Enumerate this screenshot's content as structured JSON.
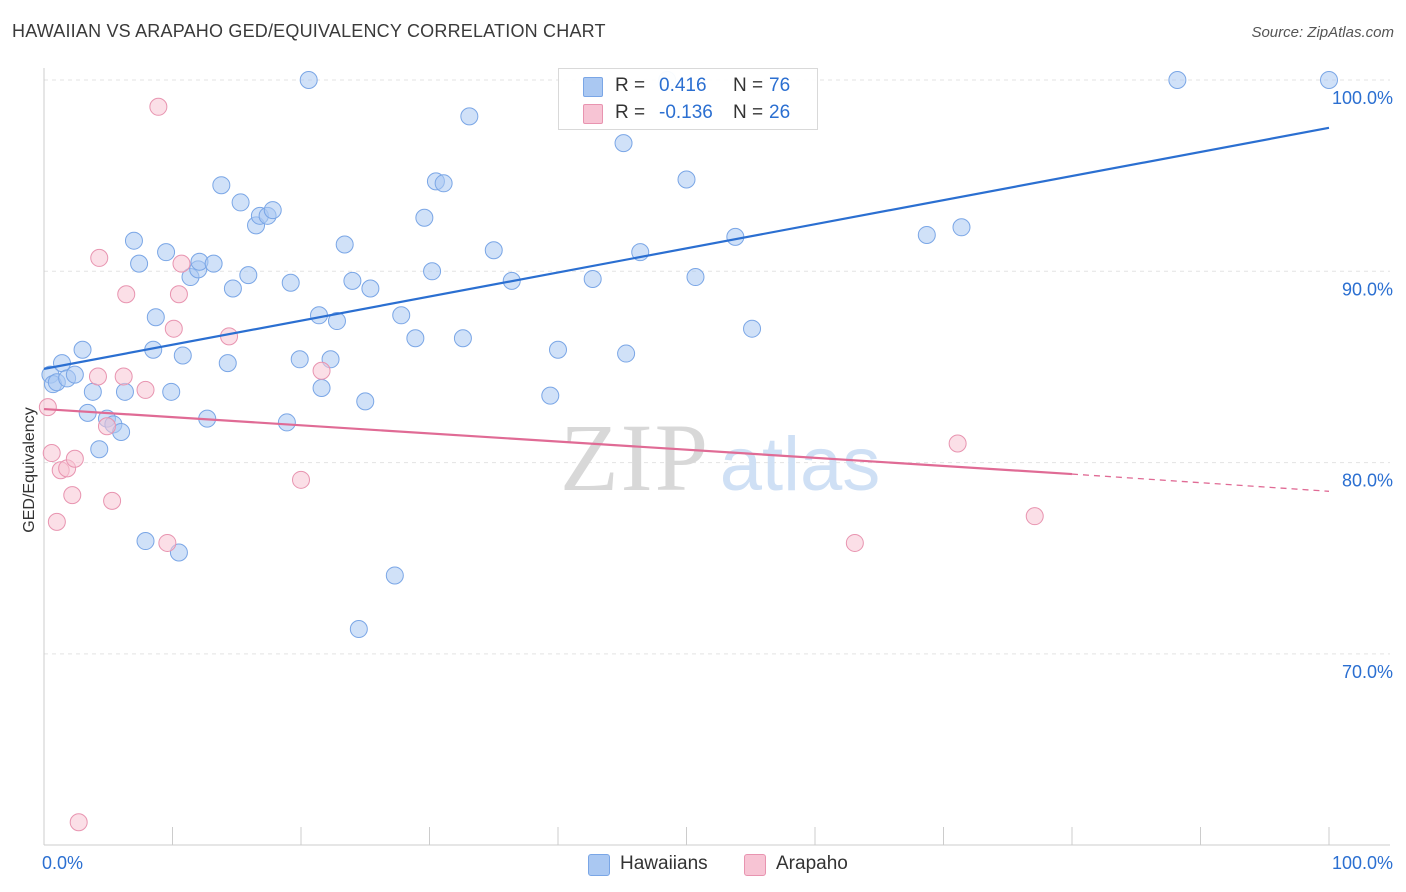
{
  "header": {
    "title": "HAWAIIAN VS ARAPAHO GED/EQUIVALENCY CORRELATION CHART",
    "source": "Source: ZipAtlas.com"
  },
  "watermark": {
    "zip": "ZIP",
    "atlas": "atlas"
  },
  "legend_box": {
    "rows": [
      {
        "r_label": "R =",
        "r_value": "0.416",
        "n_label": "N =",
        "n_value": "76",
        "color": "#aac8f2",
        "border": "#7aa6e6"
      },
      {
        "r_label": "R =",
        "r_value": "-0.136",
        "n_label": "N =",
        "n_value": "26",
        "color": "#f7c4d4",
        "border": "#e894b0"
      }
    ]
  },
  "bottom_legend": {
    "hawaiians": "Hawaiians",
    "arapaho": "Arapaho"
  },
  "chart_data": {
    "type": "scatter",
    "title": "HAWAIIAN VS ARAPAHO GED/EQUIVALENCY CORRELATION CHART",
    "xlabel": "",
    "ylabel": "GED/Equivalency",
    "xlim": [
      0,
      100
    ],
    "ylim": [
      60,
      101
    ],
    "x_tick_labels": [
      "0.0%",
      "100.0%"
    ],
    "y_ticks": [
      {
        "value": 70,
        "label": "70.0%"
      },
      {
        "value": 80,
        "label": "80.0%"
      },
      {
        "value": 90,
        "label": "90.0%"
      },
      {
        "value": 100,
        "label": "100.0%"
      }
    ],
    "grid": true,
    "legend": "bottom",
    "series": [
      {
        "name": "Hawaiians",
        "color": "#aac8f2",
        "stroke": "#7aa6e6",
        "trend": {
          "x0": 0,
          "y0": 84.9,
          "x1": 100,
          "y1": 97.5,
          "color": "#2b6fd1"
        },
        "points": [
          [
            0.5,
            84.6
          ],
          [
            0.7,
            84.1
          ],
          [
            1.0,
            84.2
          ],
          [
            1.4,
            85.2
          ],
          [
            1.8,
            84.4
          ],
          [
            2.4,
            84.6
          ],
          [
            3.0,
            85.9
          ],
          [
            3.4,
            82.6
          ],
          [
            3.8,
            83.7
          ],
          [
            4.3,
            80.7
          ],
          [
            4.9,
            82.3
          ],
          [
            5.4,
            82.0
          ],
          [
            6.0,
            81.6
          ],
          [
            6.3,
            83.7
          ],
          [
            7.0,
            91.6
          ],
          [
            7.4,
            90.4
          ],
          [
            7.9,
            75.9
          ],
          [
            8.5,
            85.9
          ],
          [
            8.7,
            87.6
          ],
          [
            9.5,
            91.0
          ],
          [
            9.9,
            83.7
          ],
          [
            10.5,
            75.3
          ],
          [
            10.8,
            85.6
          ],
          [
            11.4,
            89.7
          ],
          [
            12.0,
            90.1
          ],
          [
            12.1,
            90.5
          ],
          [
            12.7,
            82.3
          ],
          [
            13.2,
            90.4
          ],
          [
            13.8,
            94.5
          ],
          [
            14.3,
            85.2
          ],
          [
            14.7,
            89.1
          ],
          [
            15.3,
            93.6
          ],
          [
            15.9,
            89.8
          ],
          [
            16.5,
            92.4
          ],
          [
            16.8,
            92.9
          ],
          [
            17.4,
            92.9
          ],
          [
            17.8,
            93.2
          ],
          [
            18.9,
            82.1
          ],
          [
            19.2,
            89.4
          ],
          [
            19.9,
            85.4
          ],
          [
            20.6,
            100.0
          ],
          [
            21.4,
            87.7
          ],
          [
            21.6,
            83.9
          ],
          [
            22.3,
            85.4
          ],
          [
            22.8,
            87.4
          ],
          [
            23.4,
            91.4
          ],
          [
            24.0,
            89.5
          ],
          [
            24.5,
            71.3
          ],
          [
            25.0,
            83.2
          ],
          [
            25.4,
            89.1
          ],
          [
            27.3,
            74.1
          ],
          [
            27.8,
            87.7
          ],
          [
            28.9,
            86.5
          ],
          [
            29.6,
            92.8
          ],
          [
            30.2,
            90.0
          ],
          [
            30.5,
            94.7
          ],
          [
            31.1,
            94.6
          ],
          [
            32.6,
            86.5
          ],
          [
            33.1,
            98.1
          ],
          [
            35.0,
            91.1
          ],
          [
            36.4,
            89.5
          ],
          [
            39.4,
            83.5
          ],
          [
            40.0,
            85.9
          ],
          [
            42.7,
            89.6
          ],
          [
            45.1,
            96.7
          ],
          [
            45.3,
            85.7
          ],
          [
            46.4,
            91.0
          ],
          [
            48.5,
            100.0
          ],
          [
            50.0,
            94.8
          ],
          [
            50.7,
            89.7
          ],
          [
            53.8,
            91.8
          ],
          [
            55.1,
            87.0
          ],
          [
            68.7,
            91.9
          ],
          [
            71.4,
            92.3
          ],
          [
            88.2,
            100.0
          ],
          [
            100.0,
            100.0
          ]
        ]
      },
      {
        "name": "Arapaho",
        "color": "#f7c4d4",
        "stroke": "#e894b0",
        "trend": {
          "x0": 0,
          "y0": 82.8,
          "x1": 80,
          "y1": 79.4,
          "color": "#e06b95",
          "dash_to": 100,
          "dash_y": 78.5
        },
        "points": [
          [
            0.3,
            82.9
          ],
          [
            0.6,
            80.5
          ],
          [
            1.0,
            76.9
          ],
          [
            1.3,
            79.6
          ],
          [
            1.8,
            79.7
          ],
          [
            2.2,
            78.3
          ],
          [
            2.4,
            80.2
          ],
          [
            2.7,
            61.2
          ],
          [
            4.2,
            84.5
          ],
          [
            4.3,
            90.7
          ],
          [
            4.9,
            81.9
          ],
          [
            5.3,
            78.0
          ],
          [
            6.2,
            84.5
          ],
          [
            6.4,
            88.8
          ],
          [
            7.9,
            83.8
          ],
          [
            8.9,
            98.6
          ],
          [
            9.6,
            75.8
          ],
          [
            10.1,
            87.0
          ],
          [
            10.5,
            88.8
          ],
          [
            10.7,
            90.4
          ],
          [
            14.4,
            86.6
          ],
          [
            20.0,
            79.1
          ],
          [
            21.6,
            84.8
          ],
          [
            63.1,
            75.8
          ],
          [
            71.1,
            81.0
          ],
          [
            77.1,
            77.2
          ]
        ]
      }
    ]
  }
}
